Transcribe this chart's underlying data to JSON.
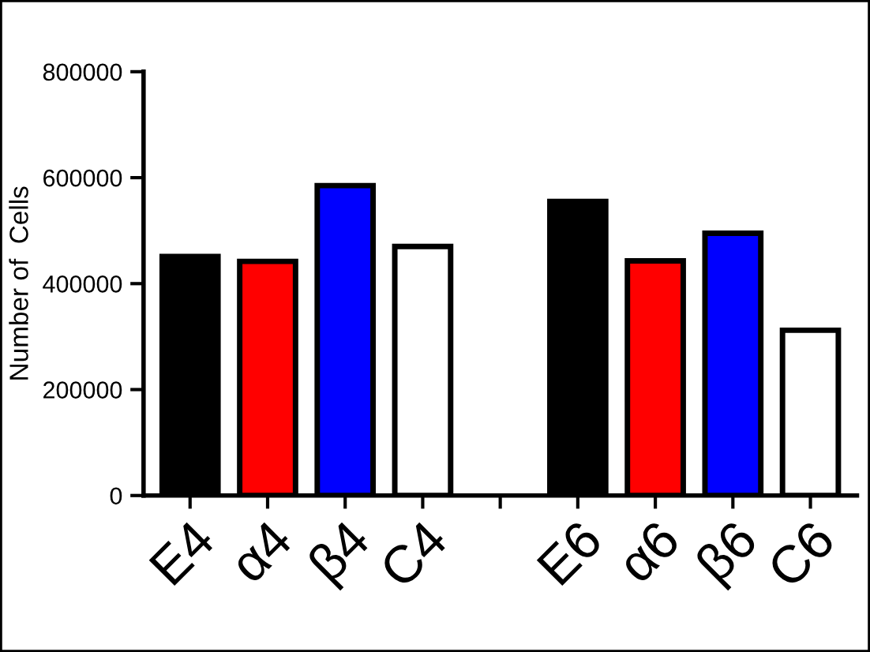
{
  "chart_data": {
    "type": "bar",
    "ylabel": "Number of  Cells",
    "categories": [
      "E4",
      "α4",
      "β4",
      "C4",
      null,
      "E6",
      "α6",
      "β6",
      "C6"
    ],
    "values": [
      451000,
      442000,
      585000,
      470000,
      null,
      555000,
      443000,
      495000,
      312000
    ],
    "colors": [
      "#000000",
      "#ff0000",
      "#0000ff",
      "#ffffff",
      null,
      "#000000",
      "#ff0000",
      "#0000ff",
      "#ffffff"
    ],
    "ylim": [
      0,
      800000
    ],
    "yticks": [
      0,
      200000,
      400000,
      600000,
      800000
    ],
    "grid": false,
    "legend": false
  }
}
